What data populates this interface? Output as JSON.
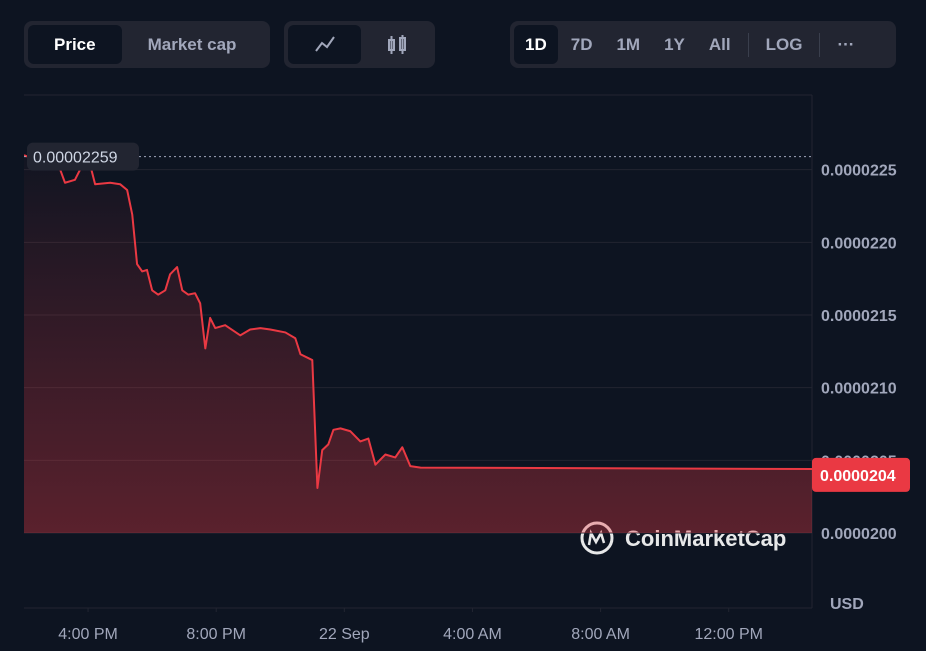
{
  "ui": {
    "tabs": [
      "Price",
      "Market cap"
    ],
    "ranges": [
      "1D",
      "7D",
      "1M",
      "1Y",
      "All"
    ],
    "log": "LOG",
    "more": "···",
    "brand": "CoinMarketCap",
    "currency": "USD"
  },
  "chart_data": {
    "type": "line",
    "x": [
      14.0,
      15.13,
      15.28,
      15.59,
      15.75,
      16.0,
      16.22,
      16.69,
      17.0,
      17.22,
      17.38,
      17.53,
      17.69,
      17.84,
      18.0,
      18.19,
      18.41,
      18.56,
      18.78,
      18.94,
      19.13,
      19.34,
      19.5,
      19.66,
      19.81,
      19.97,
      20.28,
      20.75,
      21.06,
      21.38,
      21.69,
      22.16,
      22.47,
      22.63,
      23.0,
      23.16,
      23.31,
      23.5,
      23.66,
      23.88,
      24.19,
      24.5,
      24.75,
      24.97,
      25.28,
      25.59,
      25.81,
      26.06,
      26.38,
      38.6
    ],
    "series": [
      {
        "name": "Price",
        "color": "#ea3943",
        "values": [
          2.26e-05,
          2.25e-05,
          2.241e-05,
          2.243e-05,
          2.25e-05,
          2.259e-05,
          2.24e-05,
          2.241e-05,
          2.24e-05,
          2.236e-05,
          2.219e-05,
          2.185e-05,
          2.18e-05,
          2.181e-05,
          2.167e-05,
          2.164e-05,
          2.167e-05,
          2.178e-05,
          2.183e-05,
          2.167e-05,
          2.164e-05,
          2.165e-05,
          2.158e-05,
          2.127e-05,
          2.148e-05,
          2.141e-05,
          2.143e-05,
          2.136e-05,
          2.14e-05,
          2.141e-05,
          2.14e-05,
          2.138e-05,
          2.134e-05,
          2.123e-05,
          2.119e-05,
          2.031e-05,
          2.057e-05,
          2.061e-05,
          2.071e-05,
          2.072e-05,
          2.07e-05,
          2.063e-05,
          2.065e-05,
          2.047e-05,
          2.054e-05,
          2.052e-05,
          2.059e-05,
          2.046e-05,
          2.045e-05,
          2.044e-05
        ]
      }
    ],
    "xlim": [
      14,
      38.6
    ],
    "xticks": [
      {
        "value": 16,
        "label": "4:00 PM"
      },
      {
        "value": 20,
        "label": "8:00 PM"
      },
      {
        "value": 24,
        "label": "22 Sep"
      },
      {
        "value": 28,
        "label": "4:00 AM"
      },
      {
        "value": 32,
        "label": "8:00 AM"
      },
      {
        "value": 36,
        "label": "12:00 PM"
      }
    ],
    "ylim": [
      2e-05,
      2.3e-05
    ],
    "yticks": [
      2.25e-05,
      {
        "value": 2.2e-05,
        "label": "0.0000220"
      },
      2.15e-05,
      {
        "value": 2.1e-05,
        "label": "0.0000210"
      },
      2.05e-05,
      {
        "value": 2e-05,
        "label": "0.0000200"
      }
    ],
    "grid": true,
    "high": 2.259e-05,
    "current": 2.04e-05
  }
}
